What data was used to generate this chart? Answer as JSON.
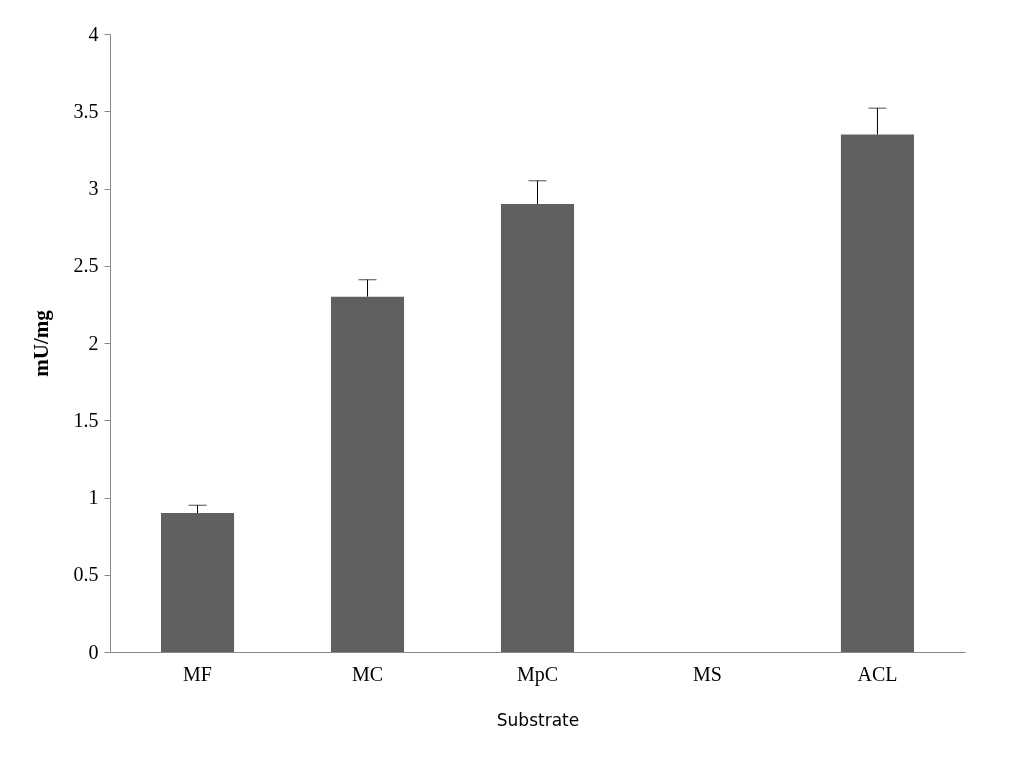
{
  "chart_data": {
    "type": "bar",
    "xlabel": "Substrate",
    "ylabel": "mU/mg",
    "categories": [
      "MF",
      "MC",
      "MpC",
      "MS",
      "ACL"
    ],
    "values": [
      0.9,
      2.3,
      2.9,
      0,
      3.35
    ],
    "errors": [
      [
        0.9,
        0.95
      ],
      [
        2.3,
        2.41
      ],
      [
        2.9,
        3.05
      ],
      null,
      [
        3.35,
        3.52
      ]
    ],
    "color": "#606060",
    "ylim": [
      0,
      4
    ],
    "yticks": [
      0,
      0.5,
      1,
      1.5,
      2,
      2.5,
      3,
      3.5,
      4
    ],
    "grid": false
  }
}
